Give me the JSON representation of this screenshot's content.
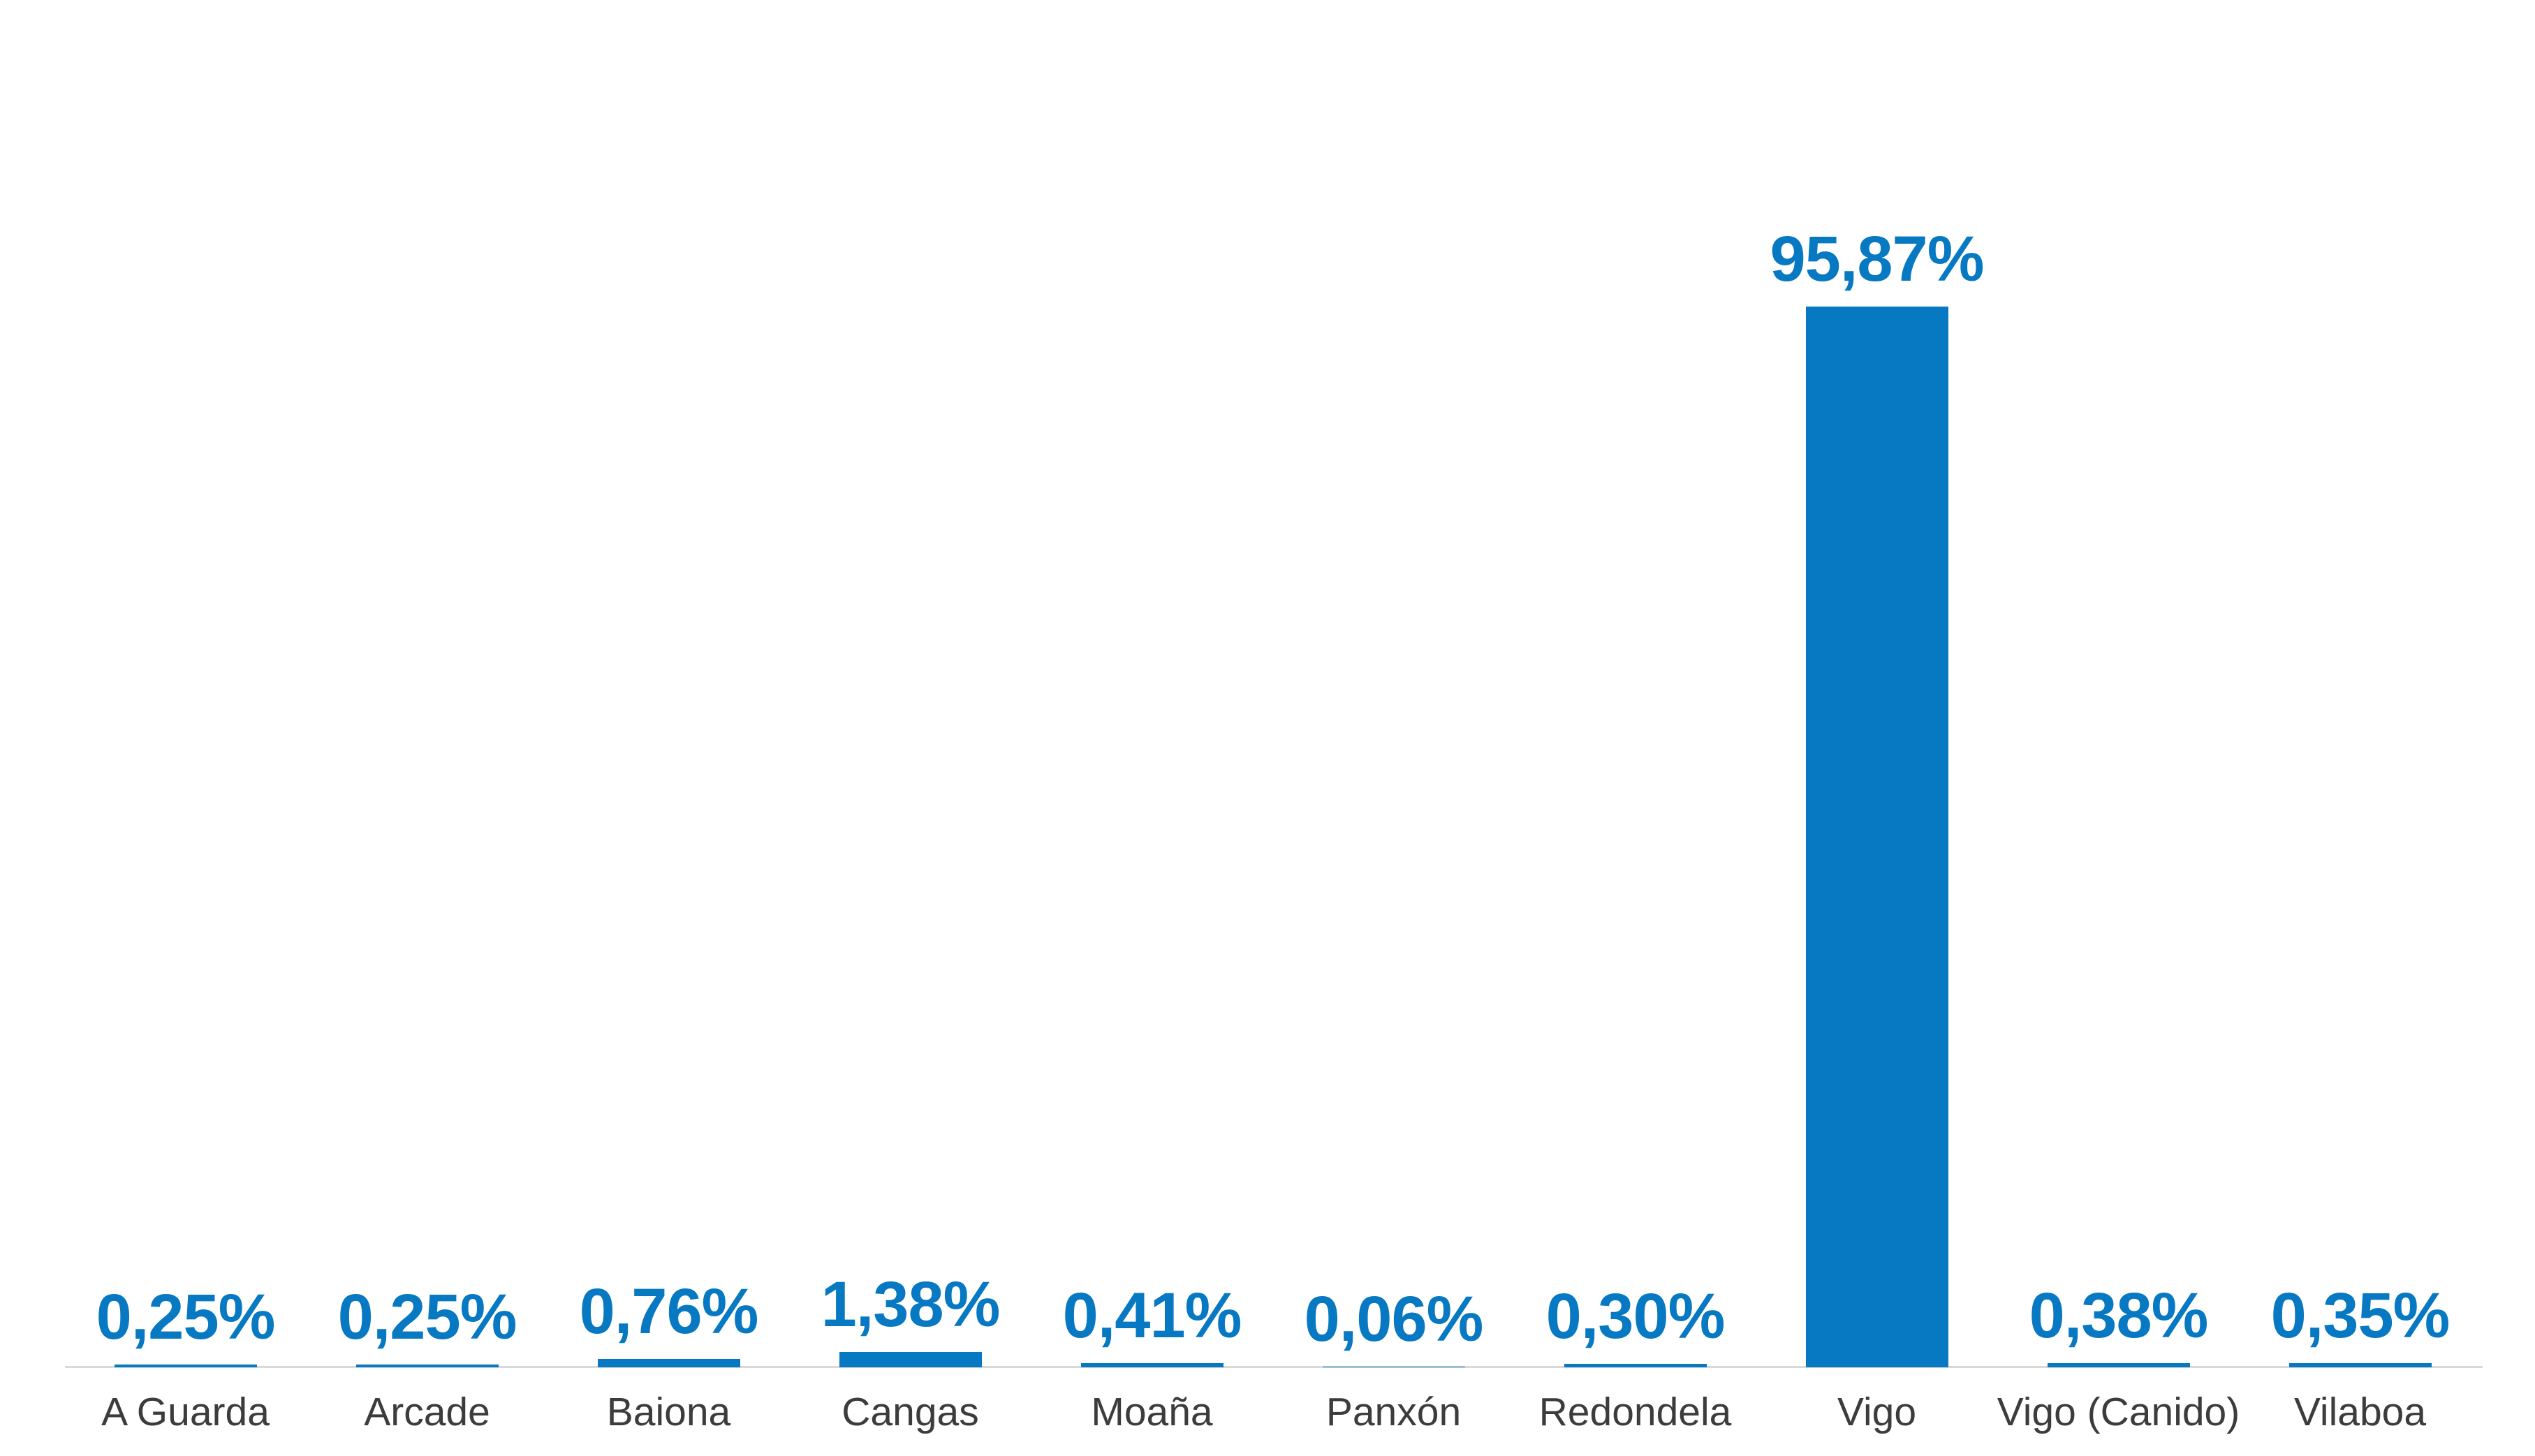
{
  "chart_data": {
    "type": "bar",
    "title": "",
    "xlabel": "",
    "ylabel": "",
    "categories": [
      "A Guarda",
      "Arcade",
      "Baiona",
      "Cangas",
      "Moaña",
      "Panxón",
      "Redondela",
      "Vigo",
      "Vigo (Canido)",
      "Vilaboa"
    ],
    "values": [
      0.25,
      0.25,
      0.76,
      1.38,
      0.41,
      0.06,
      0.3,
      95.87,
      0.38,
      0.35
    ],
    "value_labels": [
      "0,25%",
      "0,25%",
      "0,76%",
      "1,38%",
      "0,41%",
      "0,06%",
      "0,30%",
      "95,87%",
      "0,38%",
      "0,35%"
    ],
    "unit": "%",
    "ylim": [
      0,
      100
    ],
    "grid": false,
    "legend": "none",
    "value_axis_visible": false,
    "data_label_position": "above-bar",
    "colors": {
      "bar": "#0778C2",
      "value_label": "#0778C2",
      "category_label": "#3C3C3C",
      "axis_line": "#D9D9D9",
      "background": "#FFFFFF"
    }
  }
}
